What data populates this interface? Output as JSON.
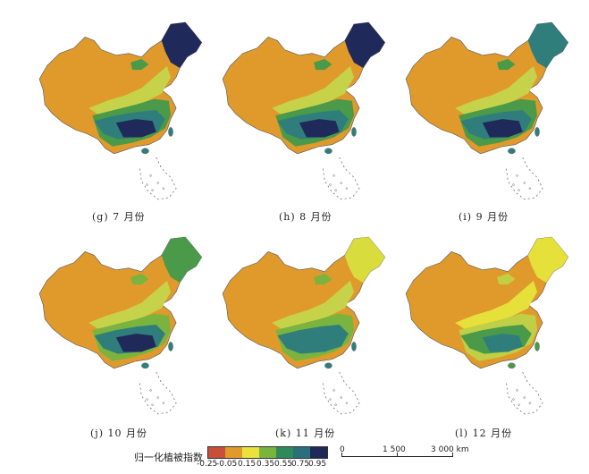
{
  "panels": [
    {
      "label": "(g) 7 月份",
      "scheme": [
        "#e09a2c",
        "#1f2a5a",
        "#2f7e7c",
        "#4a9a49",
        "#1f2a5a",
        "#c6d34a"
      ]
    },
    {
      "label": "(h) 8 月份",
      "scheme": [
        "#e09a2c",
        "#1f2a5a",
        "#2f7e7c",
        "#4a9a49",
        "#1f2a5a",
        "#c6d34a"
      ]
    },
    {
      "label": "(i) 9 月份",
      "scheme": [
        "#e09a2c",
        "#2f7e7c",
        "#2f7e7c",
        "#4a9a49",
        "#1f2a5a",
        "#c6d34a"
      ]
    },
    {
      "label": "(j) 10 月份",
      "scheme": [
        "#e09a2c",
        "#4a9a49",
        "#2f7e7c",
        "#7ab43f",
        "#1f2a5a",
        "#c6d34a"
      ]
    },
    {
      "label": "(k) 11 月份",
      "scheme": [
        "#e09a2c",
        "#d9dc3d",
        "#2f7e7c",
        "#7ab43f",
        "#2f7e7c",
        "#c6d34a"
      ]
    },
    {
      "label": "(l) 12 月份",
      "scheme": [
        "#e09a2c",
        "#e6e03a",
        "#4a9a49",
        "#c0cf45",
        "#2f7e7c",
        "#e6e03a"
      ]
    }
  ],
  "legend": {
    "title": "归一化植被指数",
    "colors": [
      "#c8503a",
      "#e09a2c",
      "#eae23a",
      "#7ab43f",
      "#2f8a5a",
      "#2b6f7a",
      "#1f2a5a"
    ],
    "ticks": [
      "-0.25",
      "-0.05",
      "0.15",
      "0.35",
      "0.55",
      "0.75",
      "0.95"
    ]
  },
  "scale": {
    "labels": [
      "0",
      "1 500",
      "3 000 km"
    ]
  }
}
